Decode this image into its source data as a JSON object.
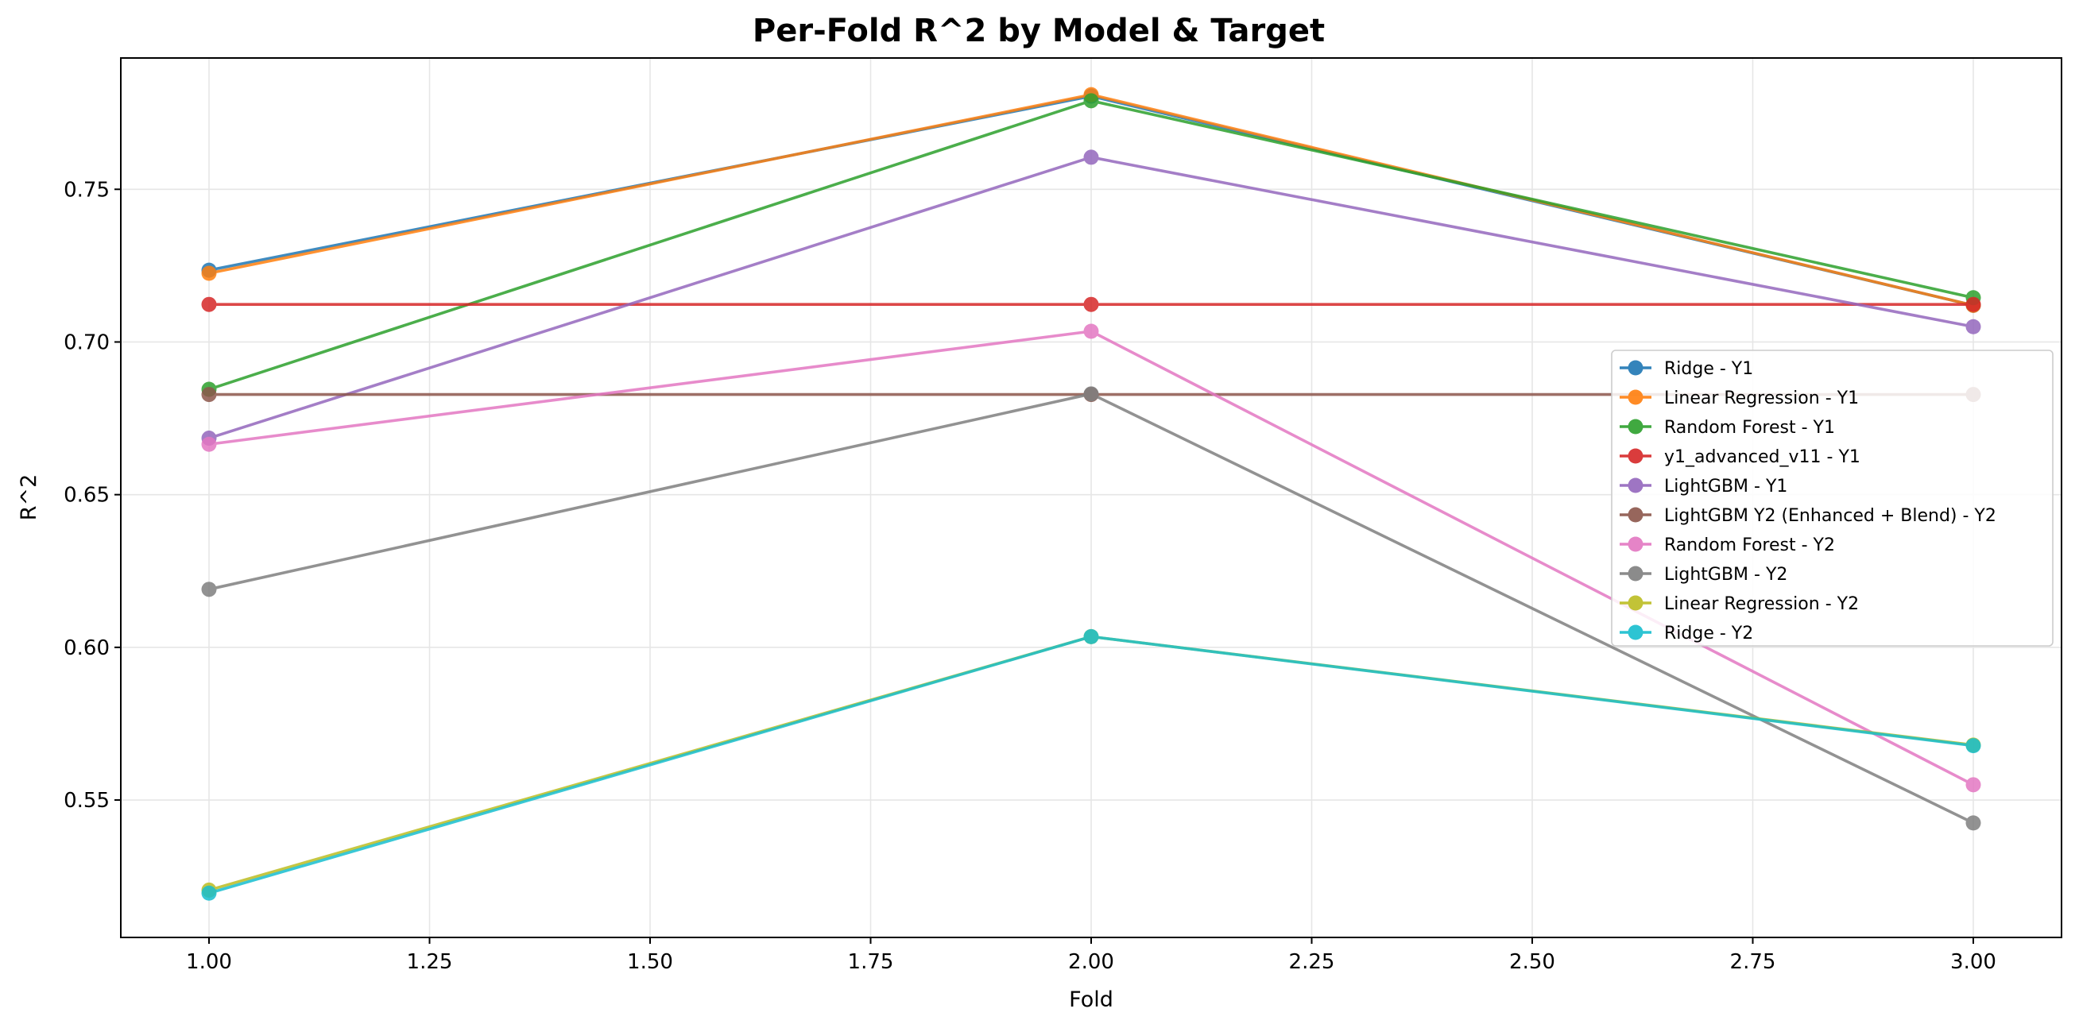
{
  "chart_data": {
    "type": "line",
    "title": "Per-Fold R^2 by Model & Target",
    "xlabel": "Fold",
    "ylabel": "R^2",
    "x": [
      1,
      2,
      3
    ],
    "xlim": [
      0.9,
      3.1
    ],
    "ylim": [
      0.505,
      0.793
    ],
    "xticks": [
      1.0,
      1.25,
      1.5,
      1.75,
      2.0,
      2.25,
      2.5,
      2.75,
      3.0
    ],
    "xtick_labels": [
      "1.00",
      "1.25",
      "1.50",
      "1.75",
      "2.00",
      "2.25",
      "2.50",
      "2.75",
      "3.00"
    ],
    "yticks": [
      0.55,
      0.6,
      0.65,
      0.7,
      0.75
    ],
    "ytick_labels": [
      "0.55",
      "0.60",
      "0.65",
      "0.70",
      "0.75"
    ],
    "grid": true,
    "legend_position": "center-right",
    "series": [
      {
        "name": "Ridge - Y1",
        "color": "#1f77b4",
        "values": [
          0.7235,
          0.7805,
          0.712
        ]
      },
      {
        "name": "Linear Regression - Y1",
        "color": "#ff7f0e",
        "values": [
          0.7225,
          0.781,
          0.712
        ]
      },
      {
        "name": "Random Forest - Y1",
        "color": "#2ca02c",
        "values": [
          0.6845,
          0.779,
          0.7145
        ]
      },
      {
        "name": "y1_advanced_v11 - Y1",
        "color": "#d62728",
        "values": [
          0.7123,
          0.7123,
          0.7123
        ]
      },
      {
        "name": "LightGBM - Y1",
        "color": "#9467bd",
        "values": [
          0.6685,
          0.7605,
          0.705
        ]
      },
      {
        "name": "LightGBM Y2 (Enhanced + Blend) - Y2",
        "color": "#8c564b",
        "values": [
          0.6828,
          0.6828,
          0.6828
        ]
      },
      {
        "name": "Random Forest - Y2",
        "color": "#e377c2",
        "values": [
          0.6665,
          0.7035,
          0.555
        ]
      },
      {
        "name": "LightGBM - Y2",
        "color": "#7f7f7f",
        "values": [
          0.619,
          0.683,
          0.5425
        ]
      },
      {
        "name": "Linear Regression - Y2",
        "color": "#bcbd22",
        "values": [
          0.5205,
          0.6035,
          0.568
        ]
      },
      {
        "name": "Ridge - Y2",
        "color": "#17becf",
        "values": [
          0.5195,
          0.6035,
          0.5678
        ]
      }
    ]
  }
}
